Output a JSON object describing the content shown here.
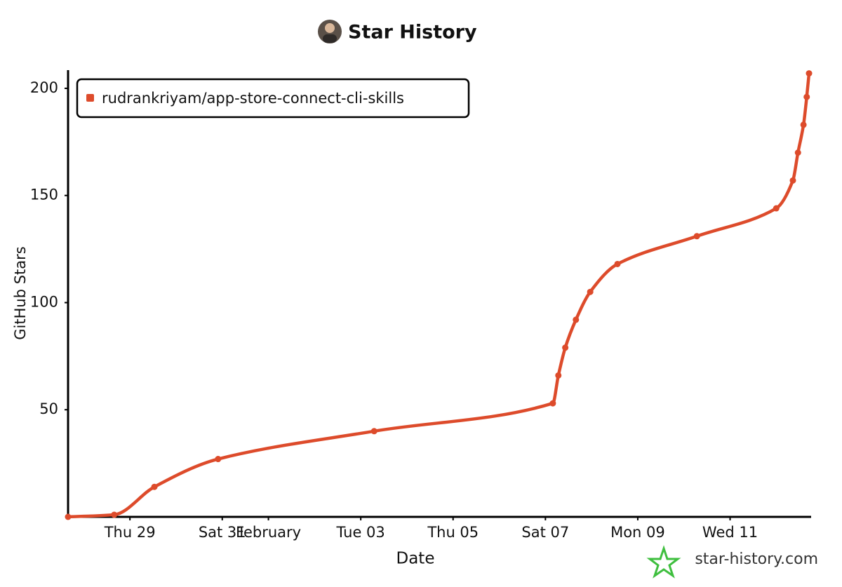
{
  "chart_data": {
    "type": "line",
    "title": "Star History",
    "x_label": "Date",
    "y_label": "GitHub Stars",
    "watermark": "star-history.com",
    "x": [
      27.66,
      28.66,
      29.53,
      30.91,
      34.29,
      38.16,
      38.28,
      38.43,
      38.66,
      38.97,
      39.56,
      41.28,
      43.0,
      43.36,
      43.47,
      43.59,
      43.66,
      43.71
    ],
    "series": [
      {
        "name": "rudrankriyam/app-store-connect-cli-skills",
        "color": "#dd4b2b",
        "values": [
          0,
          1,
          14,
          27,
          40,
          53,
          66,
          79,
          92,
          105,
          118,
          131,
          144,
          157,
          170,
          183,
          196,
          207
        ]
      }
    ],
    "xlim": [
      27.66,
      43.74
    ],
    "xticks": [
      {
        "value": 29,
        "label": "Thu 29"
      },
      {
        "value": 31,
        "label": "Sat 31"
      },
      {
        "value": 32,
        "label": "February"
      },
      {
        "value": 34,
        "label": "Tue 03"
      },
      {
        "value": 36,
        "label": "Thu 05"
      },
      {
        "value": 38,
        "label": "Sat 07"
      },
      {
        "value": 40,
        "label": "Mon 09"
      },
      {
        "value": 42,
        "label": "Wed 11"
      }
    ],
    "ylim": [
      0,
      208.5
    ],
    "yticks": [
      50,
      100,
      150,
      200
    ],
    "legend": "top-left"
  }
}
